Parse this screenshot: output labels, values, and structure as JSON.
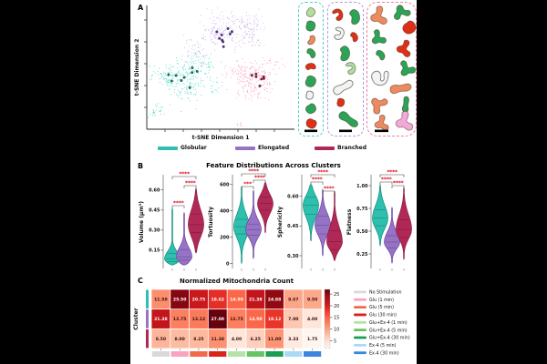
{
  "figure": {
    "panelA": {
      "label": "A",
      "xlabel": "t-SNE Dimension 1",
      "ylabel": "t-SNE Dimension 2",
      "cluster_legend": [
        {
          "label": "Globular",
          "color": "#2ebfae"
        },
        {
          "label": "Elongated",
          "color": "#9673c6"
        },
        {
          "label": "Branched",
          "color": "#b02956"
        }
      ],
      "shape_palette": {
        "green": "#2aa457",
        "lightgreen": "#abe09e",
        "red": "#de3015",
        "orange": "#ec8a60",
        "white": "#f3f3f0",
        "pink": "#f2a9d9"
      },
      "shape_boxes": [
        {
          "id": "box-globular",
          "name": "globular-examples",
          "border": "#45d4c8",
          "scalebar": {
            "x": 6,
            "w": 14
          },
          "shapes": [
            [
              "blob",
              13,
              11,
              0.55,
              20,
              "lightgreen"
            ],
            [
              "blob",
              13,
              26,
              0.62,
              0,
              "green"
            ],
            [
              "bean",
              13,
              41,
              0.55,
              95,
              "orange"
            ],
            [
              "bean",
              13,
              56,
              0.58,
              30,
              "green"
            ],
            [
              "bean",
              13,
              71,
              0.58,
              -25,
              "red"
            ],
            [
              "blob",
              13,
              87,
              0.68,
              10,
              "green"
            ],
            [
              "blob",
              12,
              102,
              0.5,
              0,
              "white"
            ],
            [
              "blob",
              13,
              117,
              0.62,
              45,
              "green"
            ],
            [
              "blob",
              13,
              133,
              0.62,
              100,
              "red"
            ]
          ]
        },
        {
          "id": "box-elongated",
          "name": "elongated-examples",
          "border": "#b79ae0",
          "scalebar": {
            "x": 12,
            "w": 14
          },
          "shapes": [
            [
              "hook",
              11,
              13,
              0.7,
              -30,
              "red"
            ],
            [
              "bean",
              28,
              16,
              0.85,
              60,
              "green"
            ],
            [
              "hook",
              12,
              34,
              0.72,
              10,
              "white"
            ],
            [
              "bean",
              28,
              38,
              0.55,
              45,
              "red"
            ],
            [
              "bean",
              17,
              56,
              0.85,
              70,
              "green"
            ],
            [
              "hook",
              25,
              72,
              0.7,
              -15,
              "lightgreen"
            ],
            [
              "snake",
              16,
              93,
              0.95,
              5,
              "white"
            ],
            [
              "blob",
              14,
              110,
              0.5,
              0,
              "red"
            ],
            [
              "snake",
              22,
              128,
              0.95,
              70,
              "green"
            ]
          ]
        },
        {
          "id": "box-branched",
          "name": "branched-examples",
          "border": "#f07fa8",
          "scalebar": {
            "x": 8,
            "w": 15
          },
          "shapes": [
            [
              "branch",
              13,
              14,
              0.95,
              0,
              "orange"
            ],
            [
              "branch",
              38,
              11,
              0.85,
              90,
              "green"
            ],
            [
              "blob",
              46,
              28,
              0.8,
              40,
              "red"
            ],
            [
              "branch",
              12,
              38,
              0.8,
              -20,
              "green"
            ],
            [
              "branch",
              41,
              50,
              0.85,
              15,
              "red"
            ],
            [
              "bean",
              14,
              58,
              0.6,
              30,
              "green"
            ],
            [
              "branch",
              43,
              72,
              0.85,
              -35,
              "green"
            ],
            [
              "u",
              14,
              82,
              0.95,
              -10,
              "white"
            ],
            [
              "snake",
              36,
              94,
              0.95,
              25,
              "orange"
            ],
            [
              "branch",
              13,
              112,
              0.9,
              60,
              "orange"
            ],
            [
              "snake",
              42,
              112,
              0.7,
              -50,
              "green"
            ],
            [
              "branch",
              16,
              132,
              0.8,
              0,
              "orange"
            ],
            [
              "branch",
              41,
              130,
              1.0,
              0,
              "pink"
            ]
          ]
        }
      ]
    },
    "panelB": {
      "label": "B"
    },
    "panelC": {
      "label": "C"
    }
  },
  "chart_data": [
    {
      "type": "scatter",
      "panel": "A",
      "xlabel": "t-SNE Dimension 1",
      "ylabel": "t-SNE Dimension 2",
      "legend_position": "below",
      "clusters": [
        {
          "name": "Globular",
          "color": "#2ebfae",
          "point_color": "#4fd9c8",
          "highlight_color": "#0c7a68",
          "approx_points": 360
        },
        {
          "name": "Elongated",
          "color": "#9673c6",
          "point_color": "#c4a8e8",
          "highlight_color": "#5a2b9a",
          "approx_points": 360
        },
        {
          "name": "Branched",
          "color": "#b02956",
          "point_color": "#f495b2",
          "highlight_color": "#a00f4e",
          "approx_points": 260
        }
      ]
    },
    {
      "type": "violin",
      "panel": "B",
      "title": "Feature Distributions Across Clusters",
      "groups": [
        "Globular",
        "Elongated",
        "Branched"
      ],
      "group_colors": [
        "#2ebfae",
        "#9673c6",
        "#b02956"
      ],
      "group_edge_colors": [
        "#0e8e7e",
        "#6b44a0",
        "#8c1c44"
      ],
      "sig_color": "#e3172c",
      "subplots": [
        {
          "ylabel": "Volume (μm³)",
          "tick_labels": [
            "0.15",
            "0.30",
            "0.45",
            "0.60"
          ],
          "tick_vals": [
            0.15,
            0.3,
            0.45,
            0.6
          ],
          "vtop": 0.7,
          "vbot": 0.02,
          "violins": [
            {
              "min": 0.04,
              "max": 0.46,
              "mode": 0.085,
              "su": 0.055,
              "sl": 0.03,
              "q": [
                0.065,
                0.085,
                0.125
              ]
            },
            {
              "min": 0.04,
              "max": 0.43,
              "mode": 0.1,
              "su": 0.07,
              "sl": 0.04,
              "q": [
                0.075,
                0.1,
                0.155
              ]
            },
            {
              "min": 0.13,
              "max": 0.61,
              "mode": 0.34,
              "su": 0.11,
              "sl": 0.09,
              "q": [
                0.28,
                0.34,
                0.42
              ]
            }
          ],
          "significance": [
            {
              "pair": [
                0,
                1
              ],
              "label": "****",
              "y": 38
            },
            {
              "pair": [
                1,
                2
              ],
              "label": "****",
              "y": 16
            },
            {
              "pair": [
                0,
                2
              ],
              "label": "****",
              "y": 6
            }
          ]
        },
        {
          "ylabel": "Tortuosity",
          "tick_labels": [
            "0",
            "200",
            "400",
            "600"
          ],
          "tick_vals": [
            0,
            200,
            400,
            600
          ],
          "vtop": 660,
          "vbot": -30,
          "violins": [
            {
              "min": 2,
              "max": 585,
              "mode": 280,
              "su": 95,
              "sl": 85,
              "q": [
                225,
                280,
                335
              ]
            },
            {
              "min": 40,
              "max": 555,
              "mode": 258,
              "su": 75,
              "sl": 62,
              "q": [
                215,
                258,
                300
              ]
            },
            {
              "min": 235,
              "max": 615,
              "mode": 455,
              "su": 70,
              "sl": 75,
              "q": [
                405,
                455,
                505
              ]
            }
          ],
          "significance": [
            {
              "pair": [
                0,
                1
              ],
              "label": "***",
              "y": 17
            },
            {
              "pair": [
                1,
                2
              ],
              "label": "****",
              "y": 10
            },
            {
              "pair": [
                0,
                2
              ],
              "label": "****",
              "y": 3
            }
          ]
        },
        {
          "ylabel": "Sphericity",
          "tick_labels": [
            "0.30",
            "0.45",
            "0.60"
          ],
          "tick_vals": [
            0.3,
            0.45,
            0.6
          ],
          "vtop": 0.7,
          "vbot": 0.24,
          "violins": [
            {
              "min": 0.375,
              "max": 0.66,
              "mode": 0.555,
              "su": 0.05,
              "sl": 0.062,
              "q": [
                0.51,
                0.555,
                0.595
              ]
            },
            {
              "min": 0.3,
              "max": 0.635,
              "mode": 0.455,
              "su": 0.058,
              "sl": 0.05,
              "q": [
                0.41,
                0.455,
                0.5
              ]
            },
            {
              "min": 0.275,
              "max": 0.625,
              "mode": 0.37,
              "su": 0.075,
              "sl": 0.04,
              "q": [
                0.33,
                0.37,
                0.425
              ]
            }
          ],
          "significance": [
            {
              "pair": [
                0,
                1
              ],
              "label": "****",
              "y": 12
            },
            {
              "pair": [
                1,
                2
              ],
              "label": "****",
              "y": 22
            },
            {
              "pair": [
                0,
                2
              ],
              "label": "****",
              "y": 4
            }
          ]
        },
        {
          "ylabel": "Flatness",
          "tick_labels": [
            "0.25",
            "0.50",
            "0.75",
            "1.00"
          ],
          "tick_vals": [
            0.25,
            0.5,
            0.75,
            1.0
          ],
          "vtop": 1.1,
          "vbot": 0.1,
          "violins": [
            {
              "min": 0.34,
              "max": 1.01,
              "mode": 0.64,
              "su": 0.14,
              "sl": 0.11,
              "q": [
                0.56,
                0.645,
                0.735
              ]
            },
            {
              "min": 0.15,
              "max": 0.76,
              "mode": 0.38,
              "su": 0.11,
              "sl": 0.075,
              "q": [
                0.315,
                0.38,
                0.45
              ]
            },
            {
              "min": 0.19,
              "max": 0.98,
              "mode": 0.52,
              "su": 0.16,
              "sl": 0.105,
              "q": [
                0.43,
                0.52,
                0.625
              ]
            }
          ],
          "significance": [
            {
              "pair": [
                0,
                1
              ],
              "label": "****",
              "y": 12
            },
            {
              "pair": [
                1,
                2
              ],
              "label": "****",
              "y": 16
            },
            {
              "pair": [
                0,
                2
              ],
              "label": "****",
              "y": 4
            }
          ]
        }
      ]
    },
    {
      "type": "heatmap",
      "panel": "C",
      "title": "Normalized Mitochondria Count",
      "ylabel": "Cluster",
      "rows": [
        "Globular",
        "Elongated",
        "Branched"
      ],
      "row_colors": [
        "#2ebfae",
        "#9673c6",
        "#b02956"
      ],
      "columns": [
        "No Stimulation",
        "Glu (1 min)",
        "Glu (5 min)",
        "Glu (30 min)",
        "Glu+Ex-4 (1 min)",
        "Glu+Ex-4 (5 min)",
        "Glu+Ex-4 (30 min)",
        "Ex-4 (5 min)",
        "Ex-4 (30 min)"
      ],
      "column_colors": [
        "#d9d9d9",
        "#f9a3c0",
        "#f2694a",
        "#da2418",
        "#b4e3a9",
        "#66c462",
        "#1a9e54",
        "#a9d9f6",
        "#3a87dd"
      ],
      "values": [
        [
          11.5,
          25.5,
          20.75,
          18.62,
          14.5,
          21.38,
          24.88,
          9.67,
          9.5
        ],
        [
          21.38,
          12.75,
          13.12,
          27.0,
          12.75,
          14.5,
          18.12,
          7.0,
          4.0
        ],
        [
          8.5,
          8.0,
          8.25,
          11.38,
          4.0,
          6.25,
          11.0,
          3.33,
          1.75
        ]
      ],
      "value_labels": [
        [
          "11.50",
          "25.50",
          "20.75",
          "18.62",
          "14.50",
          "21.38",
          "24.88",
          "9.67",
          "9.50"
        ],
        [
          "21.38",
          "12.75",
          "13.12",
          "27.00",
          "12.75",
          "14.50",
          "18.12",
          "7.00",
          "4.00"
        ],
        [
          "8.50",
          "8.00",
          "8.25",
          "11.38",
          "4.00",
          "6.25",
          "11.00",
          "3.33",
          "1.75"
        ]
      ],
      "vmin": 1.75,
      "vmax": 27.0,
      "colormap": "Reds",
      "colorbar_ticks": [
        25,
        20,
        15,
        10,
        5
      ]
    }
  ]
}
